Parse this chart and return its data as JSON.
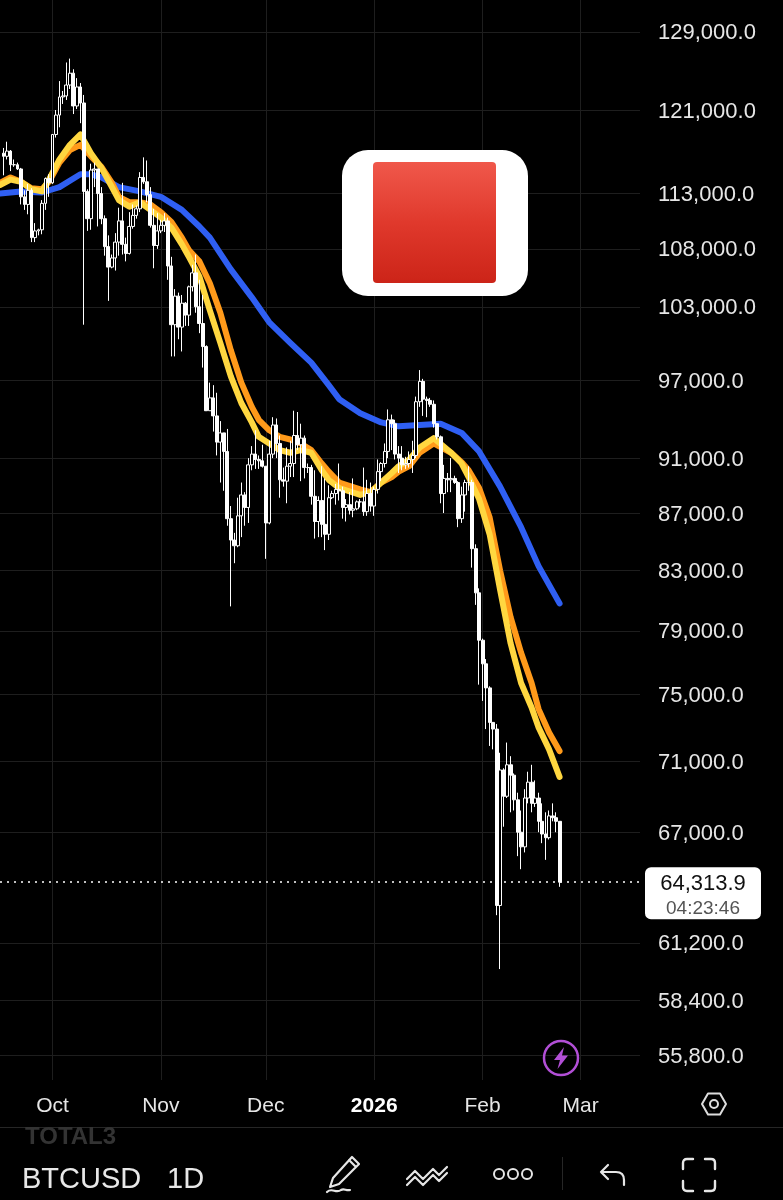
{
  "chart_data": {
    "type": "candlestick",
    "x": [
      "2025-09-17",
      "2025-09-18",
      "2025-09-19",
      "2025-09-20",
      "2025-09-21",
      "2025-09-22",
      "2025-09-23",
      "2025-09-24",
      "2025-09-25",
      "2025-09-26",
      "2025-09-27",
      "2025-09-28",
      "2025-09-29",
      "2025-09-30",
      "2025-10-01",
      "2025-10-02",
      "2025-10-03",
      "2025-10-04",
      "2025-10-05",
      "2025-10-06",
      "2025-10-07",
      "2025-10-08",
      "2025-10-09",
      "2025-10-10",
      "2025-10-11",
      "2025-10-12",
      "2025-10-13",
      "2025-10-14",
      "2025-10-15",
      "2025-10-16",
      "2025-10-17",
      "2025-10-18",
      "2025-10-19",
      "2025-10-20",
      "2025-10-21",
      "2025-10-22",
      "2025-10-23",
      "2025-10-24",
      "2025-10-25",
      "2025-10-26",
      "2025-10-27",
      "2025-10-28",
      "2025-10-29",
      "2025-10-30",
      "2025-10-31",
      "2025-11-01",
      "2025-11-02",
      "2025-11-03",
      "2025-11-04",
      "2025-11-05",
      "2025-11-06",
      "2025-11-07",
      "2025-11-08",
      "2025-11-09",
      "2025-11-10",
      "2025-11-11",
      "2025-11-12",
      "2025-11-13",
      "2025-11-14",
      "2025-11-15",
      "2025-11-16",
      "2025-11-17",
      "2025-11-18",
      "2025-11-19",
      "2025-11-20",
      "2025-11-21",
      "2025-11-22",
      "2025-11-23",
      "2025-11-24",
      "2025-11-25",
      "2025-11-26",
      "2025-11-27",
      "2025-11-28",
      "2025-11-29",
      "2025-11-30",
      "2025-12-01",
      "2025-12-02",
      "2025-12-03",
      "2025-12-04",
      "2025-12-05",
      "2025-12-06",
      "2025-12-07",
      "2025-12-08",
      "2025-12-09",
      "2025-12-10",
      "2025-12-11",
      "2025-12-12",
      "2025-12-13",
      "2025-12-14",
      "2025-12-15",
      "2025-12-16",
      "2025-12-17",
      "2025-12-18",
      "2025-12-19",
      "2025-12-20",
      "2025-12-21",
      "2025-12-22",
      "2025-12-23",
      "2025-12-24",
      "2025-12-25",
      "2025-12-26",
      "2025-12-27",
      "2025-12-28",
      "2025-12-29",
      "2025-12-30",
      "2025-12-31",
      "2026-01-01",
      "2026-01-02",
      "2026-01-03",
      "2026-01-04",
      "2026-01-05",
      "2026-01-06",
      "2026-01-07",
      "2026-01-08",
      "2026-01-09",
      "2026-01-10",
      "2026-01-11",
      "2026-01-12",
      "2026-01-13",
      "2026-01-14",
      "2026-01-15",
      "2026-01-16",
      "2026-01-17",
      "2026-01-18",
      "2026-01-19",
      "2026-01-20",
      "2026-01-21",
      "2026-01-22",
      "2026-01-23",
      "2026-01-24",
      "2026-01-25",
      "2026-01-26",
      "2026-01-27",
      "2026-01-28",
      "2026-01-29",
      "2026-01-30",
      "2026-01-31",
      "2026-02-01",
      "2026-02-02",
      "2026-02-03",
      "2026-02-04",
      "2026-02-05",
      "2026-02-06",
      "2026-02-07",
      "2026-02-08",
      "2026-02-09",
      "2026-02-10",
      "2026-02-11",
      "2026-02-12",
      "2026-02-13",
      "2026-02-14",
      "2026-02-15",
      "2026-02-16",
      "2026-02-17",
      "2026-02-18",
      "2026-02-19",
      "2026-02-20",
      "2026-02-21",
      "2026-02-22",
      "2026-02-23"
    ],
    "ohlc": [
      [
        116800,
        117300,
        114700,
        116500
      ],
      [
        116500,
        117900,
        116200,
        117000
      ],
      [
        117000,
        117100,
        115100,
        115700
      ],
      [
        115700,
        116200,
        115500,
        115700
      ],
      [
        115700,
        115900,
        115200,
        115300
      ],
      [
        115300,
        115400,
        112000,
        112700
      ],
      [
        112700,
        113300,
        111500,
        112000
      ],
      [
        112000,
        113900,
        111100,
        113300
      ],
      [
        113300,
        113500,
        108600,
        109000
      ],
      [
        109000,
        110300,
        108600,
        109600
      ],
      [
        109600,
        109800,
        109200,
        109700
      ],
      [
        109700,
        112400,
        109300,
        112100
      ],
      [
        112100,
        114500,
        111500,
        114400
      ],
      [
        114400,
        114800,
        112700,
        114000
      ],
      [
        114000,
        118600,
        113900,
        118600
      ],
      [
        118600,
        121000,
        118300,
        120500
      ],
      [
        120500,
        123900,
        119300,
        122300
      ],
      [
        122300,
        122900,
        121600,
        122400
      ],
      [
        122400,
        125800,
        122000,
        123500
      ],
      [
        123500,
        126200,
        123100,
        124700
      ],
      [
        124700,
        125100,
        120600,
        121400
      ],
      [
        121400,
        124200,
        121100,
        123300
      ],
      [
        123300,
        123700,
        119700,
        121700
      ],
      [
        121700,
        122500,
        101500,
        113200
      ],
      [
        113200,
        113400,
        109600,
        110700
      ],
      [
        110700,
        115800,
        109700,
        115200
      ],
      [
        115200,
        115900,
        113600,
        115300
      ],
      [
        115300,
        115300,
        110000,
        113000
      ],
      [
        113000,
        113600,
        110200,
        110700
      ],
      [
        110700,
        111000,
        107400,
        108200
      ],
      [
        108200,
        109200,
        103500,
        106400
      ],
      [
        106400,
        107500,
        106300,
        107200
      ],
      [
        107200,
        109400,
        106100,
        108600
      ],
      [
        108600,
        111700,
        107400,
        110500
      ],
      [
        110500,
        114000,
        107500,
        108400
      ],
      [
        108400,
        109000,
        106900,
        107600
      ],
      [
        107600,
        111300,
        107500,
        110000
      ],
      [
        110000,
        112000,
        109800,
        111000
      ],
      [
        111000,
        111900,
        110700,
        111600
      ],
      [
        111600,
        115000,
        111300,
        114500
      ],
      [
        114500,
        116400,
        113900,
        114100
      ],
      [
        114100,
        116100,
        112200,
        112900
      ],
      [
        112900,
        113600,
        109900,
        110100
      ],
      [
        110100,
        111600,
        106300,
        108300
      ],
      [
        108300,
        111200,
        108000,
        109600
      ],
      [
        109600,
        110600,
        109400,
        110100
      ],
      [
        110100,
        111200,
        109500,
        110500
      ],
      [
        110500,
        110800,
        105300,
        106500
      ],
      [
        106500,
        107300,
        98900,
        101500
      ],
      [
        101500,
        104500,
        98900,
        103900
      ],
      [
        103900,
        104200,
        100300,
        101300
      ],
      [
        101300,
        104000,
        99300,
        103300
      ],
      [
        103300,
        103400,
        101400,
        102300
      ],
      [
        102300,
        104800,
        101400,
        104700
      ],
      [
        104700,
        106600,
        104300,
        105900
      ],
      [
        105900,
        107500,
        102500,
        103000
      ],
      [
        103000,
        105300,
        100800,
        101600
      ],
      [
        101600,
        104000,
        98000,
        99700
      ],
      [
        99700,
        99800,
        94600,
        94600
      ],
      [
        94600,
        96800,
        94600,
        95600
      ],
      [
        95600,
        96600,
        93000,
        94200
      ],
      [
        94200,
        96000,
        91200,
        92200
      ],
      [
        92200,
        93800,
        89200,
        92900
      ],
      [
        92900,
        92900,
        88600,
        91500
      ],
      [
        91500,
        93200,
        86100,
        86600
      ],
      [
        86600,
        87500,
        80600,
        85100
      ],
      [
        85100,
        85600,
        83500,
        84700
      ],
      [
        84700,
        88100,
        84600,
        86800
      ],
      [
        86800,
        89200,
        85300,
        88300
      ],
      [
        88300,
        88500,
        86100,
        87400
      ],
      [
        87400,
        91000,
        86300,
        90500
      ],
      [
        90500,
        91900,
        90100,
        91300
      ],
      [
        91300,
        93100,
        90200,
        90900
      ],
      [
        90900,
        91200,
        90200,
        90800
      ],
      [
        90800,
        92000,
        90300,
        90400
      ],
      [
        90400,
        90400,
        83800,
        86300
      ],
      [
        86300,
        92300,
        86200,
        91300
      ],
      [
        91300,
        94100,
        91000,
        93500
      ],
      [
        93500,
        94000,
        91000,
        92100
      ],
      [
        92100,
        92700,
        88100,
        89400
      ],
      [
        89400,
        90300,
        88900,
        89300
      ],
      [
        89300,
        91800,
        87700,
        90400
      ],
      [
        90400,
        92300,
        89600,
        90600
      ],
      [
        90600,
        94600,
        89600,
        92700
      ],
      [
        92700,
        94500,
        91600,
        92000
      ],
      [
        92000,
        93600,
        89300,
        92500
      ],
      [
        92500,
        92700,
        89500,
        90300
      ],
      [
        90300,
        90600,
        89900,
        90300
      ],
      [
        90300,
        90500,
        87600,
        88200
      ],
      [
        88200,
        90100,
        85200,
        86400
      ],
      [
        86400,
        88200,
        85300,
        87900
      ],
      [
        87900,
        90400,
        85300,
        86200
      ],
      [
        86200,
        89500,
        84400,
        85500
      ],
      [
        85500,
        89000,
        85100,
        88100
      ],
      [
        88100,
        88600,
        88000,
        88400
      ],
      [
        88400,
        89100,
        87600,
        88700
      ],
      [
        88700,
        90600,
        87900,
        88600
      ],
      [
        88600,
        88900,
        86600,
        87400
      ],
      [
        87400,
        88000,
        86400,
        87600
      ],
      [
        87600,
        88500,
        86900,
        87200
      ],
      [
        87200,
        89500,
        86700,
        87300
      ],
      [
        87300,
        87900,
        87200,
        87800
      ],
      [
        87800,
        88000,
        87400,
        87800
      ],
      [
        87800,
        90300,
        86800,
        87100
      ],
      [
        87100,
        89400,
        86800,
        88400
      ],
      [
        88400,
        89200,
        87100,
        87500
      ],
      [
        87500,
        88900,
        86800,
        88700
      ],
      [
        88700,
        90900,
        88400,
        90000
      ],
      [
        90000,
        90700,
        89300,
        90600
      ],
      [
        90600,
        92100,
        90300,
        91500
      ],
      [
        91500,
        94700,
        91000,
        93900
      ],
      [
        93900,
        94300,
        91600,
        93600
      ],
      [
        93600,
        93900,
        90900,
        91300
      ],
      [
        91300,
        91900,
        89900,
        91000
      ],
      [
        91000,
        91900,
        90100,
        90500
      ],
      [
        90500,
        91100,
        90200,
        90600
      ],
      [
        90600,
        91500,
        90300,
        90900
      ],
      [
        90900,
        92300,
        89900,
        91200
      ],
      [
        91200,
        95700,
        91000,
        95300
      ],
      [
        95300,
        97800,
        94900,
        96900
      ],
      [
        96900,
        97100,
        94200,
        95500
      ],
      [
        95500,
        95700,
        94100,
        95400
      ],
      [
        95400,
        95600,
        94900,
        95100
      ],
      [
        95100,
        95400,
        93300,
        93600
      ],
      [
        93600,
        93600,
        92400,
        92600
      ],
      [
        92600,
        92700,
        87700,
        88400
      ],
      [
        88400,
        90500,
        87000,
        89500
      ],
      [
        89500,
        89900,
        88500,
        89400
      ],
      [
        89400,
        91000,
        88500,
        89500
      ],
      [
        89500,
        89700,
        89100,
        89200
      ],
      [
        89200,
        89300,
        86000,
        86600
      ],
      [
        86600,
        88900,
        86300,
        88300
      ],
      [
        88300,
        89400,
        87100,
        89200
      ],
      [
        89200,
        90400,
        88600,
        89200
      ],
      [
        89200,
        89400,
        83200,
        84500
      ],
      [
        84500,
        84800,
        80700,
        81500
      ],
      [
        81500,
        81800,
        75600,
        78400
      ],
      [
        78400,
        78500,
        74600,
        76900
      ],
      [
        76900,
        77200,
        72900,
        75400
      ],
      [
        75400,
        75500,
        71900,
        73300
      ],
      [
        73300,
        73300,
        71700,
        72900
      ],
      [
        72900,
        73200,
        62600,
        63100
      ],
      [
        63100,
        71500,
        59900,
        70500
      ],
      [
        70500,
        70600,
        67300,
        69000
      ],
      [
        69000,
        72100,
        68900,
        70800
      ],
      [
        70800,
        71300,
        68100,
        70200
      ],
      [
        70200,
        70300,
        68200,
        68800
      ],
      [
        68800,
        69200,
        65700,
        67000
      ],
      [
        67000,
        68200,
        65000,
        66200
      ],
      [
        66200,
        69400,
        65900,
        68900
      ],
      [
        68900,
        70400,
        68600,
        69800
      ],
      [
        69800,
        70800,
        68100,
        68600
      ],
      [
        68600,
        69900,
        68400,
        68900
      ],
      [
        68900,
        69200,
        67000,
        67600
      ],
      [
        67600,
        68600,
        66400,
        66900
      ],
      [
        66900,
        68100,
        65500,
        66700
      ],
      [
        66700,
        68200,
        66600,
        67900
      ],
      [
        67900,
        68600,
        67600,
        67800
      ],
      [
        67800,
        68100,
        67000,
        67600
      ],
      [
        67600,
        67600,
        64070,
        64313.9
      ]
    ],
    "color": "#ffffff",
    "series": [
      {
        "type": "line",
        "color": "#2f5ff3",
        "x": [
          "2025-09-16",
          "2025-09-22",
          "2025-09-28",
          "2025-10-03",
          "2025-10-09",
          "2025-10-12",
          "2025-10-15",
          "2025-10-20",
          "2025-10-26",
          "2025-11-01",
          "2025-11-07",
          "2025-11-12",
          "2025-11-15",
          "2025-11-21",
          "2025-11-27",
          "2025-12-02",
          "2025-12-08",
          "2025-12-14",
          "2025-12-19",
          "2025-12-22",
          "2025-12-28",
          "2026-01-03",
          "2026-01-08",
          "2026-01-14",
          "2026-01-20",
          "2026-01-26",
          "2026-01-31",
          "2026-02-06",
          "2026-02-12",
          "2026-02-17",
          "2026-02-23"
        ],
        "values": [
          113000,
          113200,
          113100,
          113600,
          114800,
          114800,
          114500,
          113600,
          113200,
          112700,
          111500,
          110000,
          109000,
          106200,
          103800,
          101700,
          100000,
          98400,
          96600,
          95500,
          94400,
          93700,
          93400,
          93500,
          93600,
          92900,
          91500,
          88900,
          86000,
          83300,
          80800
        ]
      },
      {
        "type": "line",
        "color": "#ff9a1a",
        "x": [
          "2025-09-16",
          "2025-09-19",
          "2025-09-22",
          "2025-09-25",
          "2025-09-28",
          "2025-09-30",
          "2025-10-03",
          "2025-10-06",
          "2025-10-09",
          "2025-10-12",
          "2025-10-15",
          "2025-10-18",
          "2025-10-20",
          "2025-10-23",
          "2025-10-26",
          "2025-10-29",
          "2025-11-01",
          "2025-11-04",
          "2025-11-07",
          "2025-11-09",
          "2025-11-12",
          "2025-11-15",
          "2025-11-18",
          "2025-11-21",
          "2025-11-24",
          "2025-11-27",
          "2025-11-29",
          "2025-12-02",
          "2025-12-05",
          "2025-12-08",
          "2025-12-11",
          "2025-12-14",
          "2025-12-17",
          "2025-12-19",
          "2025-12-22",
          "2025-12-28",
          "2025-12-31",
          "2026-01-03",
          "2026-01-06",
          "2026-01-08",
          "2026-01-11",
          "2026-01-14",
          "2026-01-18",
          "2026-01-23",
          "2026-01-26",
          "2026-01-28",
          "2026-01-31",
          "2026-02-03",
          "2026-02-06",
          "2026-02-09",
          "2026-02-12",
          "2026-02-15",
          "2026-02-17",
          "2026-02-20",
          "2026-02-23"
        ],
        "values": [
          114000,
          114500,
          114100,
          113500,
          113400,
          114100,
          115900,
          117100,
          117600,
          116500,
          115500,
          114000,
          112700,
          112200,
          112200,
          112000,
          111300,
          110400,
          109000,
          107900,
          106900,
          105000,
          102500,
          99400,
          96800,
          94900,
          93900,
          93100,
          92600,
          92400,
          92100,
          91600,
          90600,
          90000,
          89200,
          88700,
          88500,
          89200,
          89600,
          90000,
          90400,
          91400,
          92100,
          91400,
          90700,
          90100,
          88800,
          86700,
          83000,
          79900,
          77600,
          75700,
          74100,
          72700,
          71600
        ]
      },
      {
        "type": "line",
        "color": "#ffd740",
        "x": [
          "2025-09-16",
          "2025-09-19",
          "2025-09-22",
          "2025-09-25",
          "2025-09-28",
          "2025-09-30",
          "2025-10-03",
          "2025-10-06",
          "2025-10-09",
          "2025-10-12",
          "2025-10-15",
          "2025-10-18",
          "2025-10-20",
          "2025-10-23",
          "2025-10-26",
          "2025-10-29",
          "2025-11-01",
          "2025-11-04",
          "2025-11-07",
          "2025-11-09",
          "2025-11-12",
          "2025-11-15",
          "2025-11-18",
          "2025-11-21",
          "2025-11-24",
          "2025-11-27",
          "2025-11-29",
          "2025-12-02",
          "2025-12-05",
          "2025-12-08",
          "2025-12-11",
          "2025-12-14",
          "2025-12-17",
          "2025-12-19",
          "2025-12-22",
          "2025-12-28",
          "2025-12-31",
          "2026-01-03",
          "2026-01-06",
          "2026-01-08",
          "2026-01-11",
          "2026-01-14",
          "2026-01-18",
          "2026-01-23",
          "2026-01-26",
          "2026-01-28",
          "2026-01-31",
          "2026-02-03",
          "2026-02-06",
          "2026-02-09",
          "2026-02-12",
          "2026-02-15",
          "2026-02-17",
          "2026-02-20",
          "2026-02-23"
        ],
        "values": [
          113800,
          114300,
          114100,
          113400,
          113200,
          114300,
          116200,
          117600,
          118600,
          116800,
          115400,
          113600,
          112400,
          111800,
          112200,
          111500,
          110800,
          109900,
          108400,
          107300,
          105600,
          102700,
          100000,
          97300,
          95200,
          93700,
          92600,
          92100,
          91600,
          91400,
          91600,
          91400,
          90100,
          89400,
          88800,
          88300,
          88500,
          89200,
          89900,
          90400,
          90900,
          91800,
          92500,
          91400,
          90600,
          89600,
          88000,
          85500,
          81700,
          78200,
          75700,
          74200,
          73000,
          71700,
          70100
        ]
      }
    ],
    "xlim": [
      "2025-09-16",
      "2026-03-18"
    ],
    "xticks": [
      {
        "value": "2025-10-01",
        "label": "Oct"
      },
      {
        "value": "2025-11-01",
        "label": "Nov"
      },
      {
        "value": "2025-12-01",
        "label": "Dec"
      },
      {
        "value": "2026-01-01",
        "label": "2026"
      },
      {
        "value": "2026-02-01",
        "label": "Feb"
      },
      {
        "value": "2026-03-01",
        "label": "Mar"
      }
    ],
    "ylim": [
      54700,
      132400
    ],
    "yticks": [
      {
        "value": 55800,
        "label": "55,800.0"
      },
      {
        "value": 58400,
        "label": "58,400.0"
      },
      {
        "value": 61200,
        "label": "61,200.0"
      },
      {
        "value": 67000,
        "label": "67,000.0"
      },
      {
        "value": 71000,
        "label": "71,000.0"
      },
      {
        "value": 75000,
        "label": "75,000.0"
      },
      {
        "value": 79000,
        "label": "79,000.0"
      },
      {
        "value": 83000,
        "label": "83,000.0"
      },
      {
        "value": 87000,
        "label": "87,000.0"
      },
      {
        "value": 91000,
        "label": "91,000.0"
      },
      {
        "value": 97000,
        "label": "97,000.0"
      },
      {
        "value": 103000,
        "label": "103,000.0"
      },
      {
        "value": 108000,
        "label": "108,000.0"
      },
      {
        "value": 113000,
        "label": "113,000.0"
      },
      {
        "value": 121000,
        "label": "121,000.0"
      },
      {
        "value": 129000,
        "label": "129,000.0"
      }
    ],
    "log": true,
    "grid": true,
    "ref_lines": [
      {
        "axis": "y",
        "value": 64313.9,
        "label": "64,313.9",
        "color": "#ffffff",
        "line_style": "dotted"
      }
    ],
    "annotations": [
      "04:23:46",
      "TOTAL3",
      "BTCUSD",
      "1D"
    ]
  }
}
